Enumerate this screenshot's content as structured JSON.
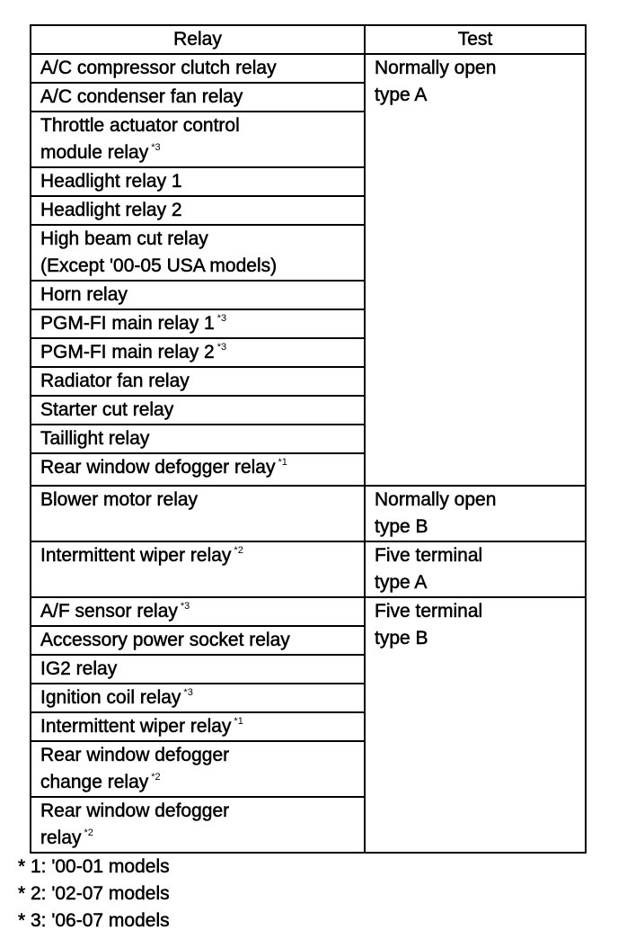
{
  "table": {
    "headers": {
      "relay": "Relay",
      "test": "Test"
    },
    "groups": [
      {
        "test": [
          "Normally open",
          "type A"
        ],
        "relays": [
          {
            "name": [
              "A/C compressor clutch relay"
            ],
            "note": ""
          },
          {
            "name": [
              "A/C condenser fan relay"
            ],
            "note": ""
          },
          {
            "name": [
              "Throttle actuator control",
              "module relay"
            ],
            "note": "*3"
          },
          {
            "name": [
              "Headlight relay 1"
            ],
            "note": ""
          },
          {
            "name": [
              "Headlight relay 2"
            ],
            "note": ""
          },
          {
            "name": [
              "High beam cut relay",
              "(Except '00-05 USA models)"
            ],
            "note": ""
          },
          {
            "name": [
              "Horn relay"
            ],
            "note": ""
          },
          {
            "name": [
              "PGM-FI main relay 1"
            ],
            "note": "*3"
          },
          {
            "name": [
              "PGM-FI main relay 2"
            ],
            "note": "*3"
          },
          {
            "name": [
              "Radiator fan relay"
            ],
            "note": ""
          },
          {
            "name": [
              "Starter cut relay"
            ],
            "note": ""
          },
          {
            "name": [
              "Taillight relay"
            ],
            "note": ""
          },
          {
            "name": [
              "Rear window defogger relay"
            ],
            "note": "*1"
          }
        ]
      },
      {
        "test": [
          "Normally open",
          "type B"
        ],
        "relays": [
          {
            "name": [
              "Blower motor relay"
            ],
            "note": ""
          }
        ]
      },
      {
        "test": [
          "Five terminal",
          "type A"
        ],
        "relays": [
          {
            "name": [
              "Intermittent wiper relay"
            ],
            "note": "*2"
          }
        ]
      },
      {
        "test": [
          "Five terminal",
          "type B"
        ],
        "relays": [
          {
            "name": [
              "A/F sensor relay"
            ],
            "note": "*3"
          },
          {
            "name": [
              "Accessory power socket relay"
            ],
            "note": ""
          },
          {
            "name": [
              "IG2 relay"
            ],
            "note": ""
          },
          {
            "name": [
              "Ignition coil relay"
            ],
            "note": "*3"
          },
          {
            "name": [
              "Intermittent wiper relay"
            ],
            "note": "*1"
          },
          {
            "name": [
              "Rear window defogger",
              "change relay"
            ],
            "note": "*2"
          },
          {
            "name": [
              "Rear window defogger",
              "relay"
            ],
            "note": "*2"
          }
        ]
      }
    ]
  },
  "footnotes": [
    "* 1: '00-01 models",
    "* 2: '02-07 models",
    "* 3: '06-07 models"
  ]
}
